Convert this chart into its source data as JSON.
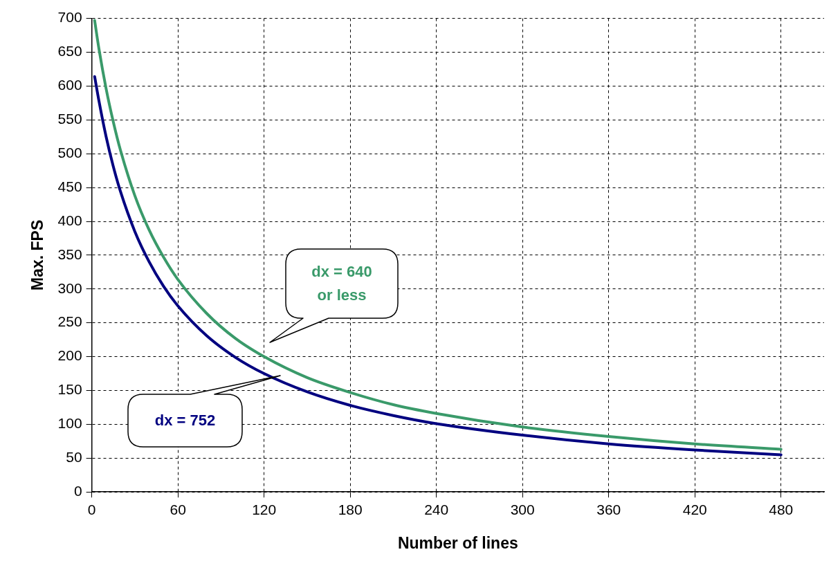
{
  "chart_data": {
    "type": "line",
    "xlabel": "Number of lines",
    "ylabel": "Max. FPS",
    "xlim": [
      0,
      510
    ],
    "ylim": [
      0,
      700
    ],
    "xticks": [
      0,
      60,
      120,
      180,
      240,
      300,
      360,
      420,
      480
    ],
    "yticks": [
      0,
      50,
      100,
      150,
      200,
      250,
      300,
      350,
      400,
      450,
      500,
      550,
      600,
      650,
      700
    ],
    "grid": true,
    "legend": false,
    "marker": "none",
    "line_style": "solid",
    "x": [
      2,
      5,
      10,
      15,
      20,
      30,
      40,
      50,
      60,
      80,
      100,
      120,
      150,
      180,
      210,
      240,
      300,
      360,
      420,
      480
    ],
    "series": [
      {
        "color": "#3a9a6a",
        "values": [
          697,
          655,
          596,
          547,
          505,
          438,
          387,
          347,
          314,
          264,
          227,
          200,
          169,
          147,
          129,
          116,
          96,
          82,
          71,
          63
        ]
      },
      {
        "color": "#000080",
        "values": [
          614,
          578,
          525,
          481,
          444,
          385,
          340,
          304,
          275,
          231,
          199,
          175,
          148,
          128,
          113,
          101,
          84,
          71,
          62,
          55
        ]
      }
    ],
    "annotations": [
      "dx = 640 or less",
      "dx = 752"
    ]
  }
}
